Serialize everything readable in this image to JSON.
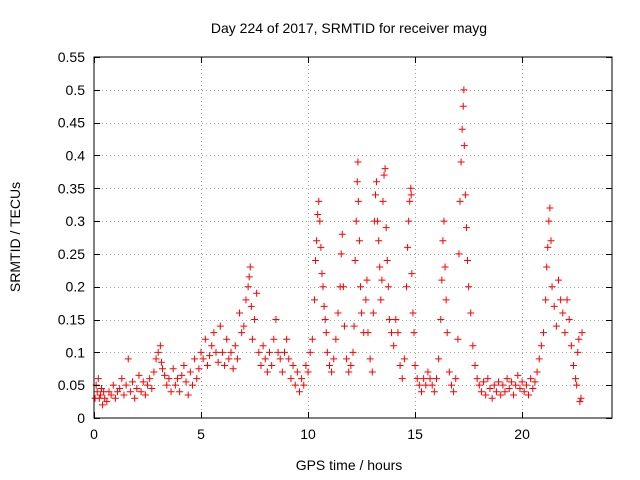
{
  "chart_data": {
    "type": "scatter",
    "title": "Day 224 of 2017, SRMTID for receiver mayg",
    "xlabel": "GPS time / hours",
    "ylabel": "SRMTID / TECUs",
    "xlim": [
      0,
      24.2
    ],
    "ylim": [
      0,
      0.55
    ],
    "xticks": [
      "0",
      "5",
      "10",
      "15",
      "20"
    ],
    "xtick_values": [
      0,
      5,
      10,
      15,
      20
    ],
    "yticks": [
      "0",
      "0.05",
      "0.1",
      "0.15",
      "0.2",
      "0.25",
      "0.3",
      "0.35",
      "0.4",
      "0.45",
      "0.5",
      "0.55"
    ],
    "ytick_values": [
      0,
      0.05,
      0.1,
      0.15,
      0.2,
      0.25,
      0.3,
      0.35,
      0.4,
      0.45,
      0.5,
      0.55
    ],
    "grid": true,
    "marker": "+",
    "color": "#ff0000",
    "series": [
      {
        "name": "SRMTID",
        "points": [
          [
            0.05,
            0.03
          ],
          [
            0.1,
            0.05
          ],
          [
            0.15,
            0.04
          ],
          [
            0.2,
            0.06
          ],
          [
            0.25,
            0.03
          ],
          [
            0.3,
            0.035
          ],
          [
            0.35,
            0.045
          ],
          [
            0.4,
            0.02
          ],
          [
            0.45,
            0.04
          ],
          [
            0.5,
            0.03
          ],
          [
            0.6,
            0.025
          ],
          [
            0.7,
            0.04
          ],
          [
            0.8,
            0.035
          ],
          [
            0.9,
            0.05
          ],
          [
            1.0,
            0.03
          ],
          [
            1.1,
            0.04
          ],
          [
            1.2,
            0.045
          ],
          [
            1.3,
            0.06
          ],
          [
            1.4,
            0.035
          ],
          [
            1.5,
            0.05
          ],
          [
            1.6,
            0.09
          ],
          [
            1.7,
            0.04
          ],
          [
            1.8,
            0.055
          ],
          [
            1.9,
            0.03
          ],
          [
            2.0,
            0.045
          ],
          [
            2.1,
            0.065
          ],
          [
            2.2,
            0.04
          ],
          [
            2.3,
            0.055
          ],
          [
            2.4,
            0.035
          ],
          [
            2.5,
            0.05
          ],
          [
            2.6,
            0.06
          ],
          [
            2.7,
            0.045
          ],
          [
            2.8,
            0.07
          ],
          [
            2.9,
            0.09
          ],
          [
            3.0,
            0.1
          ],
          [
            3.1,
            0.11
          ],
          [
            3.15,
            0.085
          ],
          [
            3.2,
            0.075
          ],
          [
            3.3,
            0.065
          ],
          [
            3.4,
            0.05
          ],
          [
            3.5,
            0.06
          ],
          [
            3.6,
            0.04
          ],
          [
            3.7,
            0.075
          ],
          [
            3.8,
            0.05
          ],
          [
            3.9,
            0.06
          ],
          [
            4.0,
            0.04
          ],
          [
            4.1,
            0.065
          ],
          [
            4.2,
            0.08
          ],
          [
            4.3,
            0.055
          ],
          [
            4.4,
            0.035
          ],
          [
            4.5,
            0.07
          ],
          [
            4.6,
            0.05
          ],
          [
            4.7,
            0.09
          ],
          [
            4.8,
            0.06
          ],
          [
            4.9,
            0.075
          ],
          [
            5.0,
            0.1
          ],
          [
            5.1,
            0.09
          ],
          [
            5.2,
            0.12
          ],
          [
            5.3,
            0.08
          ],
          [
            5.4,
            0.095
          ],
          [
            5.5,
            0.11
          ],
          [
            5.6,
            0.13
          ],
          [
            5.7,
            0.1
          ],
          [
            5.8,
            0.085
          ],
          [
            5.9,
            0.14
          ],
          [
            6.0,
            0.1
          ],
          [
            6.1,
            0.08
          ],
          [
            6.2,
            0.12
          ],
          [
            6.3,
            0.09
          ],
          [
            6.4,
            0.1
          ],
          [
            6.5,
            0.075
          ],
          [
            6.6,
            0.11
          ],
          [
            6.7,
            0.09
          ],
          [
            6.8,
            0.16
          ],
          [
            6.9,
            0.13
          ],
          [
            7.0,
            0.14
          ],
          [
            7.1,
            0.18
          ],
          [
            7.2,
            0.2
          ],
          [
            7.25,
            0.215
          ],
          [
            7.3,
            0.23
          ],
          [
            7.35,
            0.17
          ],
          [
            7.4,
            0.12
          ],
          [
            7.5,
            0.15
          ],
          [
            7.6,
            0.19
          ],
          [
            7.7,
            0.1
          ],
          [
            7.8,
            0.08
          ],
          [
            7.9,
            0.11
          ],
          [
            8.0,
            0.09
          ],
          [
            8.1,
            0.07
          ],
          [
            8.2,
            0.1
          ],
          [
            8.3,
            0.08
          ],
          [
            8.4,
            0.12
          ],
          [
            8.5,
            0.15
          ],
          [
            8.6,
            0.1
          ],
          [
            8.7,
            0.09
          ],
          [
            8.8,
            0.07
          ],
          [
            8.9,
            0.1
          ],
          [
            9.0,
            0.12
          ],
          [
            9.1,
            0.09
          ],
          [
            9.2,
            0.06
          ],
          [
            9.3,
            0.08
          ],
          [
            9.4,
            0.05
          ],
          [
            9.5,
            0.07
          ],
          [
            9.6,
            0.04
          ],
          [
            9.7,
            0.06
          ],
          [
            9.8,
            0.05
          ],
          [
            9.9,
            0.08
          ],
          [
            10.0,
            0.07
          ],
          [
            10.1,
            0.1
          ],
          [
            10.2,
            0.12
          ],
          [
            10.3,
            0.18
          ],
          [
            10.35,
            0.24
          ],
          [
            10.4,
            0.27
          ],
          [
            10.45,
            0.31
          ],
          [
            10.5,
            0.33
          ],
          [
            10.55,
            0.3
          ],
          [
            10.6,
            0.26
          ],
          [
            10.65,
            0.22
          ],
          [
            10.7,
            0.2
          ],
          [
            10.75,
            0.17
          ],
          [
            10.8,
            0.15
          ],
          [
            10.85,
            0.13
          ],
          [
            10.9,
            0.1
          ],
          [
            11.0,
            0.08
          ],
          [
            11.1,
            0.07
          ],
          [
            11.2,
            0.09
          ],
          [
            11.3,
            0.12
          ],
          [
            11.4,
            0.16
          ],
          [
            11.5,
            0.2
          ],
          [
            11.55,
            0.25
          ],
          [
            11.6,
            0.28
          ],
          [
            11.65,
            0.2
          ],
          [
            11.7,
            0.14
          ],
          [
            11.8,
            0.09
          ],
          [
            11.9,
            0.07
          ],
          [
            12.0,
            0.08
          ],
          [
            12.1,
            0.1
          ],
          [
            12.15,
            0.14
          ],
          [
            12.2,
            0.24
          ],
          [
            12.25,
            0.3
          ],
          [
            12.3,
            0.36
          ],
          [
            12.33,
            0.39
          ],
          [
            12.35,
            0.33
          ],
          [
            12.4,
            0.27
          ],
          [
            12.45,
            0.2
          ],
          [
            12.5,
            0.16
          ],
          [
            12.6,
            0.13
          ],
          [
            12.7,
            0.18
          ],
          [
            12.75,
            0.21
          ],
          [
            12.8,
            0.13
          ],
          [
            12.9,
            0.09
          ],
          [
            13.0,
            0.07
          ],
          [
            13.05,
            0.16
          ],
          [
            13.1,
            0.3
          ],
          [
            13.15,
            0.34
          ],
          [
            13.2,
            0.36
          ],
          [
            13.25,
            0.3
          ],
          [
            13.3,
            0.27
          ],
          [
            13.35,
            0.23
          ],
          [
            13.4,
            0.18
          ],
          [
            13.45,
            0.21
          ],
          [
            13.5,
            0.33
          ],
          [
            13.55,
            0.37
          ],
          [
            13.6,
            0.38
          ],
          [
            13.65,
            0.29
          ],
          [
            13.7,
            0.24
          ],
          [
            13.75,
            0.2
          ],
          [
            13.8,
            0.15
          ],
          [
            13.9,
            0.13
          ],
          [
            14.0,
            0.11
          ],
          [
            14.1,
            0.15
          ],
          [
            14.2,
            0.13
          ],
          [
            14.3,
            0.08
          ],
          [
            14.4,
            0.06
          ],
          [
            14.5,
            0.09
          ],
          [
            14.6,
            0.2
          ],
          [
            14.65,
            0.26
          ],
          [
            14.7,
            0.3
          ],
          [
            14.75,
            0.33
          ],
          [
            14.8,
            0.35
          ],
          [
            14.82,
            0.34
          ],
          [
            14.85,
            0.22
          ],
          [
            14.9,
            0.16
          ],
          [
            14.95,
            0.13
          ],
          [
            15.0,
            0.08
          ],
          [
            15.1,
            0.06
          ],
          [
            15.2,
            0.05
          ],
          [
            15.3,
            0.04
          ],
          [
            15.4,
            0.06
          ],
          [
            15.5,
            0.05
          ],
          [
            15.6,
            0.07
          ],
          [
            15.7,
            0.06
          ],
          [
            15.8,
            0.05
          ],
          [
            15.9,
            0.04
          ],
          [
            16.0,
            0.06
          ],
          [
            16.1,
            0.09
          ],
          [
            16.2,
            0.15
          ],
          [
            16.25,
            0.21
          ],
          [
            16.3,
            0.27
          ],
          [
            16.35,
            0.3
          ],
          [
            16.4,
            0.23
          ],
          [
            16.45,
            0.18
          ],
          [
            16.5,
            0.13
          ],
          [
            16.6,
            0.07
          ],
          [
            16.7,
            0.05
          ],
          [
            16.8,
            0.04
          ],
          [
            16.9,
            0.06
          ],
          [
            17.0,
            0.12
          ],
          [
            17.05,
            0.25
          ],
          [
            17.1,
            0.33
          ],
          [
            17.15,
            0.39
          ],
          [
            17.2,
            0.44
          ],
          [
            17.25,
            0.475
          ],
          [
            17.28,
            0.5
          ],
          [
            17.3,
            0.415
          ],
          [
            17.35,
            0.34
          ],
          [
            17.4,
            0.29
          ],
          [
            17.45,
            0.24
          ],
          [
            17.5,
            0.2
          ],
          [
            17.6,
            0.16
          ],
          [
            17.7,
            0.11
          ],
          [
            17.8,
            0.08
          ],
          [
            17.9,
            0.06
          ],
          [
            18.0,
            0.05
          ],
          [
            18.1,
            0.04
          ],
          [
            18.2,
            0.055
          ],
          [
            18.3,
            0.035
          ],
          [
            18.4,
            0.06
          ],
          [
            18.5,
            0.045
          ],
          [
            18.6,
            0.03
          ],
          [
            18.7,
            0.05
          ],
          [
            18.8,
            0.04
          ],
          [
            18.9,
            0.055
          ],
          [
            19.0,
            0.035
          ],
          [
            19.1,
            0.05
          ],
          [
            19.2,
            0.04
          ],
          [
            19.3,
            0.06
          ],
          [
            19.4,
            0.045
          ],
          [
            19.5,
            0.055
          ],
          [
            19.6,
            0.035
          ],
          [
            19.7,
            0.05
          ],
          [
            19.8,
            0.065
          ],
          [
            19.9,
            0.045
          ],
          [
            20.0,
            0.055
          ],
          [
            20.1,
            0.04
          ],
          [
            20.2,
            0.05
          ],
          [
            20.3,
            0.035
          ],
          [
            20.4,
            0.06
          ],
          [
            20.5,
            0.045
          ],
          [
            20.6,
            0.055
          ],
          [
            20.7,
            0.07
          ],
          [
            20.8,
            0.09
          ],
          [
            20.9,
            0.11
          ],
          [
            21.0,
            0.13
          ],
          [
            21.1,
            0.18
          ],
          [
            21.15,
            0.23
          ],
          [
            21.2,
            0.26
          ],
          [
            21.25,
            0.3
          ],
          [
            21.3,
            0.32
          ],
          [
            21.35,
            0.27
          ],
          [
            21.4,
            0.2
          ],
          [
            21.5,
            0.17
          ],
          [
            21.6,
            0.14
          ],
          [
            21.7,
            0.21
          ],
          [
            21.8,
            0.18
          ],
          [
            21.9,
            0.16
          ],
          [
            22.0,
            0.13
          ],
          [
            22.1,
            0.18
          ],
          [
            22.2,
            0.15
          ],
          [
            22.3,
            0.11
          ],
          [
            22.4,
            0.08
          ],
          [
            22.5,
            0.06
          ],
          [
            22.55,
            0.05
          ],
          [
            22.6,
            0.1
          ],
          [
            22.65,
            0.12
          ],
          [
            22.7,
            0.025
          ],
          [
            22.75,
            0.03
          ],
          [
            22.8,
            0.13
          ]
        ]
      }
    ]
  }
}
